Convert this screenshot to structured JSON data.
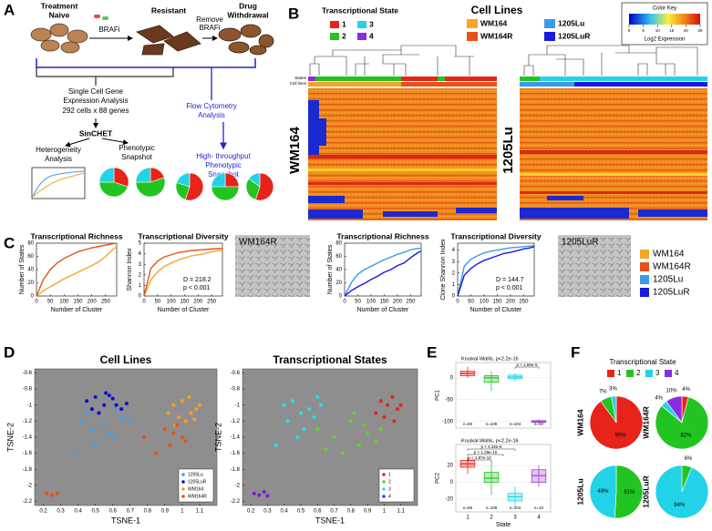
{
  "panel_a": {
    "letter": "A",
    "treatment_naive": [
      "Treatment",
      "Naive"
    ],
    "brafi": "BRAFi",
    "resistant": "Resistant",
    "remove_brafi": [
      "Remove",
      "BRAFi"
    ],
    "drug_withdrawal": [
      "Drug",
      "Withdrawal"
    ],
    "sc_title": [
      "Single Cell Gene",
      "Expression Analysis"
    ],
    "sc_size": "292 cells x 88 genes",
    "sinchet": "SinCHET",
    "flow": [
      "Flow Cytometry",
      "Analysis"
    ],
    "hts": [
      "High- throughput",
      "Phenotypic",
      "Snapshot"
    ],
    "heterogeneity": [
      "Heterogeneity",
      "Analysis"
    ],
    "phenotypic": [
      "Phenotypic",
      "Snapshot"
    ],
    "pie_colors": [
      "#e8231a",
      "#22c422",
      "#22d3e8"
    ],
    "pies": [
      [
        30,
        45,
        25
      ],
      [
        20,
        55,
        25
      ],
      [
        55,
        25,
        20
      ],
      [
        25,
        50,
        25
      ],
      [
        55,
        30,
        15
      ]
    ]
  },
  "panel_b": {
    "letter": "B",
    "state_title": "Transcriptional State",
    "states": [
      {
        "name": "1",
        "color": "#e8231a"
      },
      {
        "name": "2",
        "color": "#22c422"
      },
      {
        "name": "3",
        "color": "#22d3e8"
      },
      {
        "name": "4",
        "color": "#8a2be2"
      }
    ],
    "cellline_title": "Cell Lines",
    "cell_lines": [
      {
        "name": "WM164",
        "color": "#f5a623"
      },
      {
        "name": "WM164R",
        "color": "#e8501a"
      },
      {
        "name": "1205Lu",
        "color": "#3a9be8"
      },
      {
        "name": "1205LuR",
        "color": "#1a1adb"
      }
    ],
    "color_key": {
      "title": "Color Key",
      "lim": [
        0,
        25
      ],
      "ticks": [
        0,
        5,
        10,
        15,
        20,
        25
      ],
      "label": "Log2 Expression"
    },
    "row_labels": [
      "States",
      "Cell lines"
    ],
    "heatmaps": [
      "WM164",
      "1205Lu"
    ]
  },
  "panel_c": {
    "letter": "C",
    "images": [
      "WM164R",
      "1205LuR"
    ],
    "charts": [
      {
        "type": "line",
        "title": "Transcriptional Richness",
        "ylabel": "Number of States",
        "xlabel": "Number of Cluster",
        "xlim": [
          0,
          290
        ],
        "ylim": [
          0,
          80
        ],
        "xticks": [
          0,
          50,
          100,
          150,
          200,
          250
        ],
        "yticks": [
          0,
          20,
          40,
          60,
          80
        ],
        "x": [
          0,
          25,
          50,
          75,
          100,
          125,
          150,
          175,
          200,
          225,
          250,
          275,
          290
        ],
        "series": [
          {
            "name": "WM164",
            "color": "#f5a623",
            "values": [
              0,
              8,
              14,
              20,
              26,
              31,
              36,
              41,
              46,
              52,
              60,
              70,
              75
            ]
          },
          {
            "name": "WM164R",
            "color": "#e8501a",
            "values": [
              0,
              25,
              40,
              50,
              57,
              62,
              67,
              70,
              73,
              75,
              77,
              79,
              80
            ]
          }
        ],
        "annotations": []
      },
      {
        "type": "line",
        "title": "Transcriptional Diversity",
        "ylabel": "Shannon Index",
        "xlabel": "Number of Cluster",
        "xlim": [
          0,
          290
        ],
        "ylim": [
          0,
          5
        ],
        "xticks": [
          0,
          50,
          100,
          150,
          200,
          250
        ],
        "yticks": [
          0,
          1,
          2,
          3,
          4,
          5
        ],
        "x": [
          0,
          25,
          50,
          75,
          100,
          125,
          150,
          175,
          200,
          225,
          250,
          275,
          290
        ],
        "series": [
          {
            "name": "WM164",
            "color": "#f5a623",
            "values": [
              0,
              1.5,
              2.3,
              2.8,
              3.1,
              3.4,
              3.6,
              3.8,
              3.9,
              4.0,
              4.2,
              4.3,
              4.3
            ]
          },
          {
            "name": "WM164R",
            "color": "#e8501a",
            "values": [
              0,
              2.6,
              3.3,
              3.7,
              3.9,
              4.1,
              4.2,
              4.3,
              4.35,
              4.4,
              4.45,
              4.5,
              4.5
            ]
          }
        ],
        "annotations": [
          "D = 218.2",
          "p < 0.001"
        ]
      },
      {
        "type": "line",
        "title": "Transcriptional Richness",
        "ylabel": "Number of States",
        "xlabel": "Number of Cluster",
        "xlim": [
          0,
          290
        ],
        "ylim": [
          0,
          80
        ],
        "xticks": [
          0,
          50,
          100,
          150,
          200,
          250
        ],
        "yticks": [
          0,
          20,
          40,
          60,
          80
        ],
        "x": [
          0,
          25,
          50,
          75,
          100,
          125,
          150,
          175,
          200,
          225,
          250,
          275,
          290
        ],
        "series": [
          {
            "name": "1205Lu",
            "color": "#3a9be8",
            "values": [
              0,
              20,
              33,
              40,
              45,
              50,
              55,
              59,
              63,
              66,
              70,
              72,
              72
            ]
          },
          {
            "name": "1205LuR",
            "color": "#1a1adb",
            "values": [
              0,
              8,
              14,
              19,
              25,
              30,
              36,
              40,
              46,
              50,
              58,
              65,
              68
            ]
          }
        ],
        "annotations": []
      },
      {
        "type": "line",
        "title": "Transcriptional Diversity",
        "ylabel": "Clone Shannon Index",
        "xlabel": "Number of Cluster",
        "xlim": [
          0,
          290
        ],
        "ylim": [
          0,
          4.6
        ],
        "xticks": [
          0,
          50,
          100,
          150,
          200,
          250
        ],
        "yticks": [
          0,
          1,
          2,
          3,
          4
        ],
        "x": [
          0,
          25,
          50,
          75,
          100,
          125,
          150,
          175,
          200,
          225,
          250,
          275,
          290
        ],
        "series": [
          {
            "name": "1205Lu",
            "color": "#3a9be8",
            "values": [
              0,
              2.6,
              3.2,
              3.5,
              3.75,
              3.9,
              4.0,
              4.1,
              4.2,
              4.25,
              4.3,
              4.35,
              4.4
            ]
          },
          {
            "name": "1205LuR",
            "color": "#1a1adb",
            "values": [
              0,
              1.8,
              2.4,
              2.8,
              3.1,
              3.3,
              3.5,
              3.7,
              3.8,
              3.95,
              4.1,
              4.2,
              4.3
            ]
          }
        ],
        "annotations": [
          "D = 144.7",
          "p < 0.001"
        ]
      }
    ]
  },
  "panel_d": {
    "letter": "D",
    "charts": [
      {
        "type": "scatter",
        "title": "Cell Lines",
        "xlabel": "TSNE-1",
        "ylabel": "TSNE-2",
        "xlim": [
          0.15,
          1.2
        ],
        "ylim": [
          -2.25,
          -0.55
        ],
        "xticks": [
          0.2,
          0.3,
          0.4,
          0.5,
          0.6,
          0.7,
          0.8,
          0.9,
          1,
          1.1
        ],
        "yticks": [
          -0.6,
          -0.8,
          -1,
          -1.2,
          -1.4,
          -1.6,
          -1.8,
          -2,
          -2.2
        ],
        "legend": "lower right",
        "series": [
          {
            "name": "1205Lu",
            "color": "#3da0f0",
            "x": [
              0.42,
              0.48,
              0.55,
              0.6,
              0.65,
              0.5,
              0.45,
              0.58,
              0.7,
              0.38,
              0.62
            ],
            "values": [
              -1.2,
              -1.3,
              -1.25,
              -1.4,
              -1.15,
              -1.5,
              -1.1,
              -1.35,
              -1.2,
              -1.6,
              -1.05
            ]
          },
          {
            "name": "1205LuR",
            "color": "#0b0bd6",
            "x": [
              0.45,
              0.5,
              0.55,
              0.6,
              0.65,
              0.52,
              0.58,
              0.62,
              0.48,
              0.68,
              0.56
            ],
            "values": [
              -0.95,
              -0.9,
              -1.0,
              -0.92,
              -1.05,
              -1.1,
              -0.88,
              -1.0,
              -1.05,
              -0.98,
              -0.85
            ]
          },
          {
            "name": "WM164",
            "color": "#f5a020",
            "x": [
              0.95,
              1.0,
              1.05,
              1.08,
              0.98,
              1.02,
              1.1,
              0.92,
              1.04,
              0.96,
              1.07
            ],
            "values": [
              -1.0,
              -0.95,
              -1.1,
              -1.05,
              -1.15,
              -1.2,
              -1.0,
              -1.1,
              -0.9,
              -1.25,
              -1.18
            ]
          },
          {
            "name": "WM164R",
            "color": "#e8501a",
            "x": [
              0.9,
              0.95,
              1.0,
              0.93,
              0.97,
              1.02,
              0.85,
              0.22,
              0.25,
              0.28,
              0.78
            ],
            "values": [
              -1.3,
              -1.35,
              -1.4,
              -1.5,
              -1.25,
              -1.45,
              -1.6,
              -2.1,
              -2.12,
              -2.1,
              -1.4
            ]
          }
        ]
      },
      {
        "type": "scatter",
        "title": "Transcriptional States",
        "xlabel": "TSNE-1",
        "ylabel": "TSNE-2",
        "xlim": [
          0.15,
          1.2
        ],
        "ylim": [
          -2.25,
          -0.55
        ],
        "xticks": [
          0.2,
          0.3,
          0.4,
          0.5,
          0.6,
          0.7,
          0.8,
          0.9,
          1,
          1.1
        ],
        "yticks": [
          -0.6,
          -0.8,
          -1,
          -1.2,
          -1.4,
          -1.6,
          -1.8,
          -2,
          -2.2
        ],
        "legend": "lower right",
        "series": [
          {
            "name": "1",
            "color": "#e8231a",
            "x": [
              0.98,
              1.02,
              1.05,
              1.08,
              0.95,
              1.0,
              1.06,
              1.1
            ],
            "values": [
              -0.95,
              -1.0,
              -0.9,
              -1.05,
              -1.1,
              -1.15,
              -1.2,
              -1.0
            ]
          },
          {
            "name": "2",
            "color": "#5fd12b",
            "x": [
              0.6,
              0.7,
              0.8,
              0.85,
              0.9,
              0.95,
              0.75,
              0.88,
              0.65,
              0.98,
              0.82
            ],
            "values": [
              -1.3,
              -1.4,
              -1.2,
              -1.5,
              -1.35,
              -1.45,
              -1.6,
              -1.25,
              -1.55,
              -1.3,
              -1.1
            ]
          },
          {
            "name": "3",
            "color": "#22e0f0",
            "x": [
              0.4,
              0.45,
              0.5,
              0.55,
              0.6,
              0.42,
              0.52,
              0.58,
              0.48,
              0.35,
              0.62
            ],
            "values": [
              -1.0,
              -0.95,
              -1.1,
              -1.05,
              -0.9,
              -1.2,
              -1.3,
              -1.15,
              -1.4,
              -1.5,
              -1.0
            ]
          },
          {
            "name": "4",
            "color": "#7a1fd8",
            "x": [
              0.22,
              0.25,
              0.28,
              0.3
            ],
            "values": [
              -2.1,
              -2.12,
              -2.08,
              -2.13
            ]
          }
        ]
      }
    ]
  },
  "panel_e": {
    "letter": "E",
    "xlabel": "State",
    "categories": [
      "1",
      "2",
      "3",
      "4"
    ],
    "colors": [
      "#e8231a",
      "#22c422",
      "#22d3e8",
      "#a040d8"
    ],
    "n_labels": [
      "n=69",
      "n=109",
      "n=104",
      "n=10"
    ],
    "plots": [
      {
        "type": "box",
        "test": "Kruskal-Wallis, p<2.2e-16",
        "ylabel": "PC1",
        "ylim": [
          -115,
          35
        ],
        "yticks": [
          0,
          -50,
          -100
        ],
        "boxes": [
          {
            "min": 0,
            "q1": 5,
            "median": 10,
            "q3": 15,
            "max": 25
          },
          {
            "min": -30,
            "q1": -10,
            "median": 0,
            "q3": 5,
            "max": 15
          },
          {
            "min": -8,
            "q1": -2,
            "median": 2,
            "q3": 6,
            "max": 10
          },
          {
            "min": -105,
            "q1": -102,
            "median": -100,
            "q3": -98,
            "max": -95
          }
        ],
        "pvalues": [
          "p < 1.86e-5"
        ]
      },
      {
        "type": "box",
        "test": "Kruskal-Wallis, p<2.2e-16",
        "ylabel": "PC2",
        "ylim": [
          -35,
          45
        ],
        "yticks": [
          20,
          0,
          -20
        ],
        "boxes": [
          {
            "min": 10,
            "q1": 18,
            "median": 22,
            "q3": 26,
            "max": 30
          },
          {
            "min": -15,
            "q1": 0,
            "median": 5,
            "q3": 12,
            "max": 25
          },
          {
            "min": -30,
            "q1": -22,
            "median": -17,
            "q3": -13,
            "max": -5
          },
          {
            "min": -5,
            "q1": 0,
            "median": 8,
            "q3": 15,
            "max": 20
          }
        ],
        "pvalues": [
          "p < 4.32e-6",
          "p < 1.29e-10",
          "p < 1.87e-12"
        ]
      }
    ]
  },
  "panel_f": {
    "letter": "F",
    "title": "Transcriptional State",
    "legend": [
      {
        "name": "1",
        "color": "#e8231a"
      },
      {
        "name": "2",
        "color": "#22c422"
      },
      {
        "name": "3",
        "color": "#22d3e8"
      },
      {
        "name": "4",
        "color": "#8a2be2"
      }
    ],
    "pies": [
      {
        "name": "WM164",
        "values": [
          90,
          7,
          3
        ],
        "colors": [
          "#e8231a",
          "#22c422",
          "#22d3e8"
        ],
        "value_labels": [
          "90%",
          "7%",
          "3%"
        ]
      },
      {
        "name": "WM164R",
        "values": [
          4,
          82,
          4,
          10
        ],
        "colors": [
          "#e8231a",
          "#22c422",
          "#22d3e8",
          "#8a2be2"
        ],
        "value_labels": [
          "4%",
          "82%",
          "4%",
          "10%"
        ]
      },
      {
        "name": "1205Lu",
        "values": [
          51,
          49
        ],
        "colors": [
          "#22c422",
          "#22d3e8"
        ],
        "value_labels": [
          "51%",
          "49%"
        ]
      },
      {
        "name": "1205LuR",
        "values": [
          6,
          94
        ],
        "colors": [
          "#22c422",
          "#22d3e8"
        ],
        "value_labels": [
          "6%",
          "94%"
        ]
      }
    ]
  }
}
